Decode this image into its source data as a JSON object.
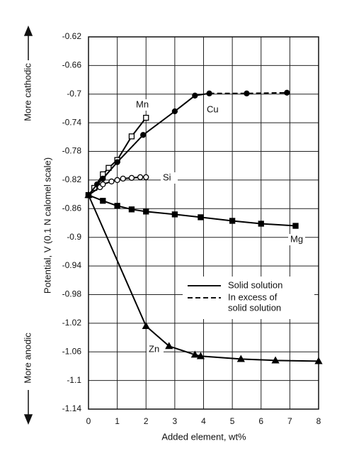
{
  "chart_data": {
    "type": "line",
    "x_label": "Added element, wt%",
    "y_label": "Potential, V (0.1 N calomel scale)",
    "y_arrow_top": "More cathodic",
    "y_arrow_bottom": "More anodic",
    "xlim": [
      0,
      8
    ],
    "xticks": [
      0,
      1,
      2,
      3,
      4,
      5,
      6,
      7,
      8
    ],
    "ylim": [
      -1.14,
      -0.62
    ],
    "yticks": [
      -0.62,
      -0.66,
      -0.7,
      -0.74,
      -0.78,
      -0.82,
      -0.86,
      -0.9,
      -0.94,
      -0.98,
      -1.02,
      -1.06,
      -1.1,
      -1.14
    ],
    "grid": true,
    "legend": [
      {
        "label": [
          "Solid solution"
        ],
        "dash": "solid"
      },
      {
        "label": [
          "In excess of",
          "solid solution"
        ],
        "dash": "dashed"
      }
    ],
    "series": [
      {
        "name": "Mn",
        "marker": "square",
        "filled": false,
        "color": "#000000",
        "x": [
          0,
          0.2,
          0.5,
          0.7,
          1.0,
          1.5,
          2.0
        ],
        "values": [
          -0.841,
          -0.831,
          -0.812,
          -0.803,
          -0.792,
          -0.759,
          -0.733
        ]
      },
      {
        "name": "Cu",
        "marker": "circle",
        "filled": true,
        "color": "#000000",
        "dash_from_index": 7,
        "x": [
          0,
          0.3,
          0.5,
          1.0,
          1.9,
          3.0,
          3.7,
          4.2,
          5.5,
          6.9
        ],
        "values": [
          -0.841,
          -0.826,
          -0.818,
          -0.795,
          -0.757,
          -0.724,
          -0.702,
          -0.699,
          -0.699,
          -0.698
        ]
      },
      {
        "name": "Si",
        "marker": "circle",
        "filled": false,
        "color": "#000000",
        "x": [
          0,
          0.4,
          0.5,
          0.8,
          1.0,
          1.2,
          1.5,
          1.8,
          2.0
        ],
        "values": [
          -0.841,
          -0.83,
          -0.826,
          -0.822,
          -0.82,
          -0.818,
          -0.817,
          -0.816,
          -0.816
        ]
      },
      {
        "name": "Mg",
        "marker": "square",
        "filled": true,
        "color": "#000000",
        "x": [
          0,
          0.5,
          1.0,
          1.5,
          2.0,
          3.0,
          3.9,
          5.0,
          6.0,
          7.2
        ],
        "values": [
          -0.841,
          -0.849,
          -0.856,
          -0.861,
          -0.864,
          -0.868,
          -0.872,
          -0.877,
          -0.881,
          -0.884
        ]
      },
      {
        "name": "Zn",
        "marker": "triangle",
        "filled": true,
        "color": "#000000",
        "x": [
          0,
          2.0,
          2.8,
          3.7,
          3.9,
          5.3,
          6.5,
          8.0
        ],
        "values": [
          -0.841,
          -1.024,
          -1.052,
          -1.064,
          -1.066,
          -1.07,
          -1.072,
          -1.073
        ]
      }
    ]
  }
}
